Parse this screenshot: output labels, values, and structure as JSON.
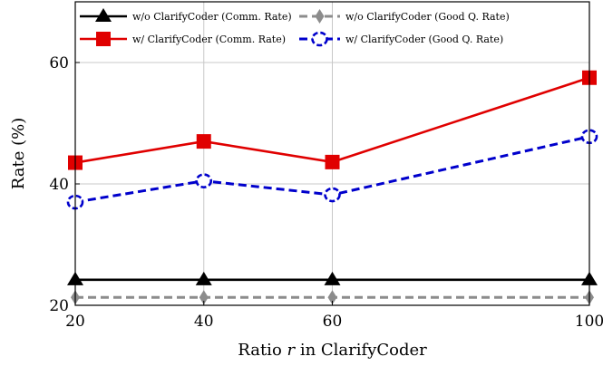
{
  "chart_data": {
    "type": "line",
    "xlabel_prefix": "Ratio ",
    "xlabel_var": "r",
    "xlabel_suffix": " in ClarifyCoder",
    "ylabel": "Rate (%)",
    "x": [
      20,
      40,
      60,
      100
    ],
    "xlim": [
      20,
      100
    ],
    "ylim": [
      20,
      70
    ],
    "yticks": [
      20,
      40,
      60
    ],
    "grid": true,
    "legend_position": "top",
    "series": [
      {
        "name": "w/o ClarifyCoder (Comm. Rate)",
        "values": [
          24.2,
          24.2,
          24.2,
          24.2
        ],
        "color": "#000000",
        "style": "solid",
        "marker": "triangle"
      },
      {
        "name": "w/o ClarifyCoder (Good Q. Rate)",
        "values": [
          21.3,
          21.3,
          21.3,
          21.3
        ],
        "color": "#8c8c8c",
        "style": "dashed",
        "marker": "diamond"
      },
      {
        "name": "w/ ClarifyCoder (Comm. Rate)",
        "values": [
          43.5,
          47.0,
          43.6,
          57.5
        ],
        "color": "#e00000",
        "style": "solid",
        "marker": "square"
      },
      {
        "name": "w/ ClarifyCoder (Good Q. Rate)",
        "values": [
          37.0,
          40.5,
          38.2,
          47.8
        ],
        "color": "#0000cc",
        "style": "dashed",
        "marker": "circle-open"
      }
    ]
  }
}
